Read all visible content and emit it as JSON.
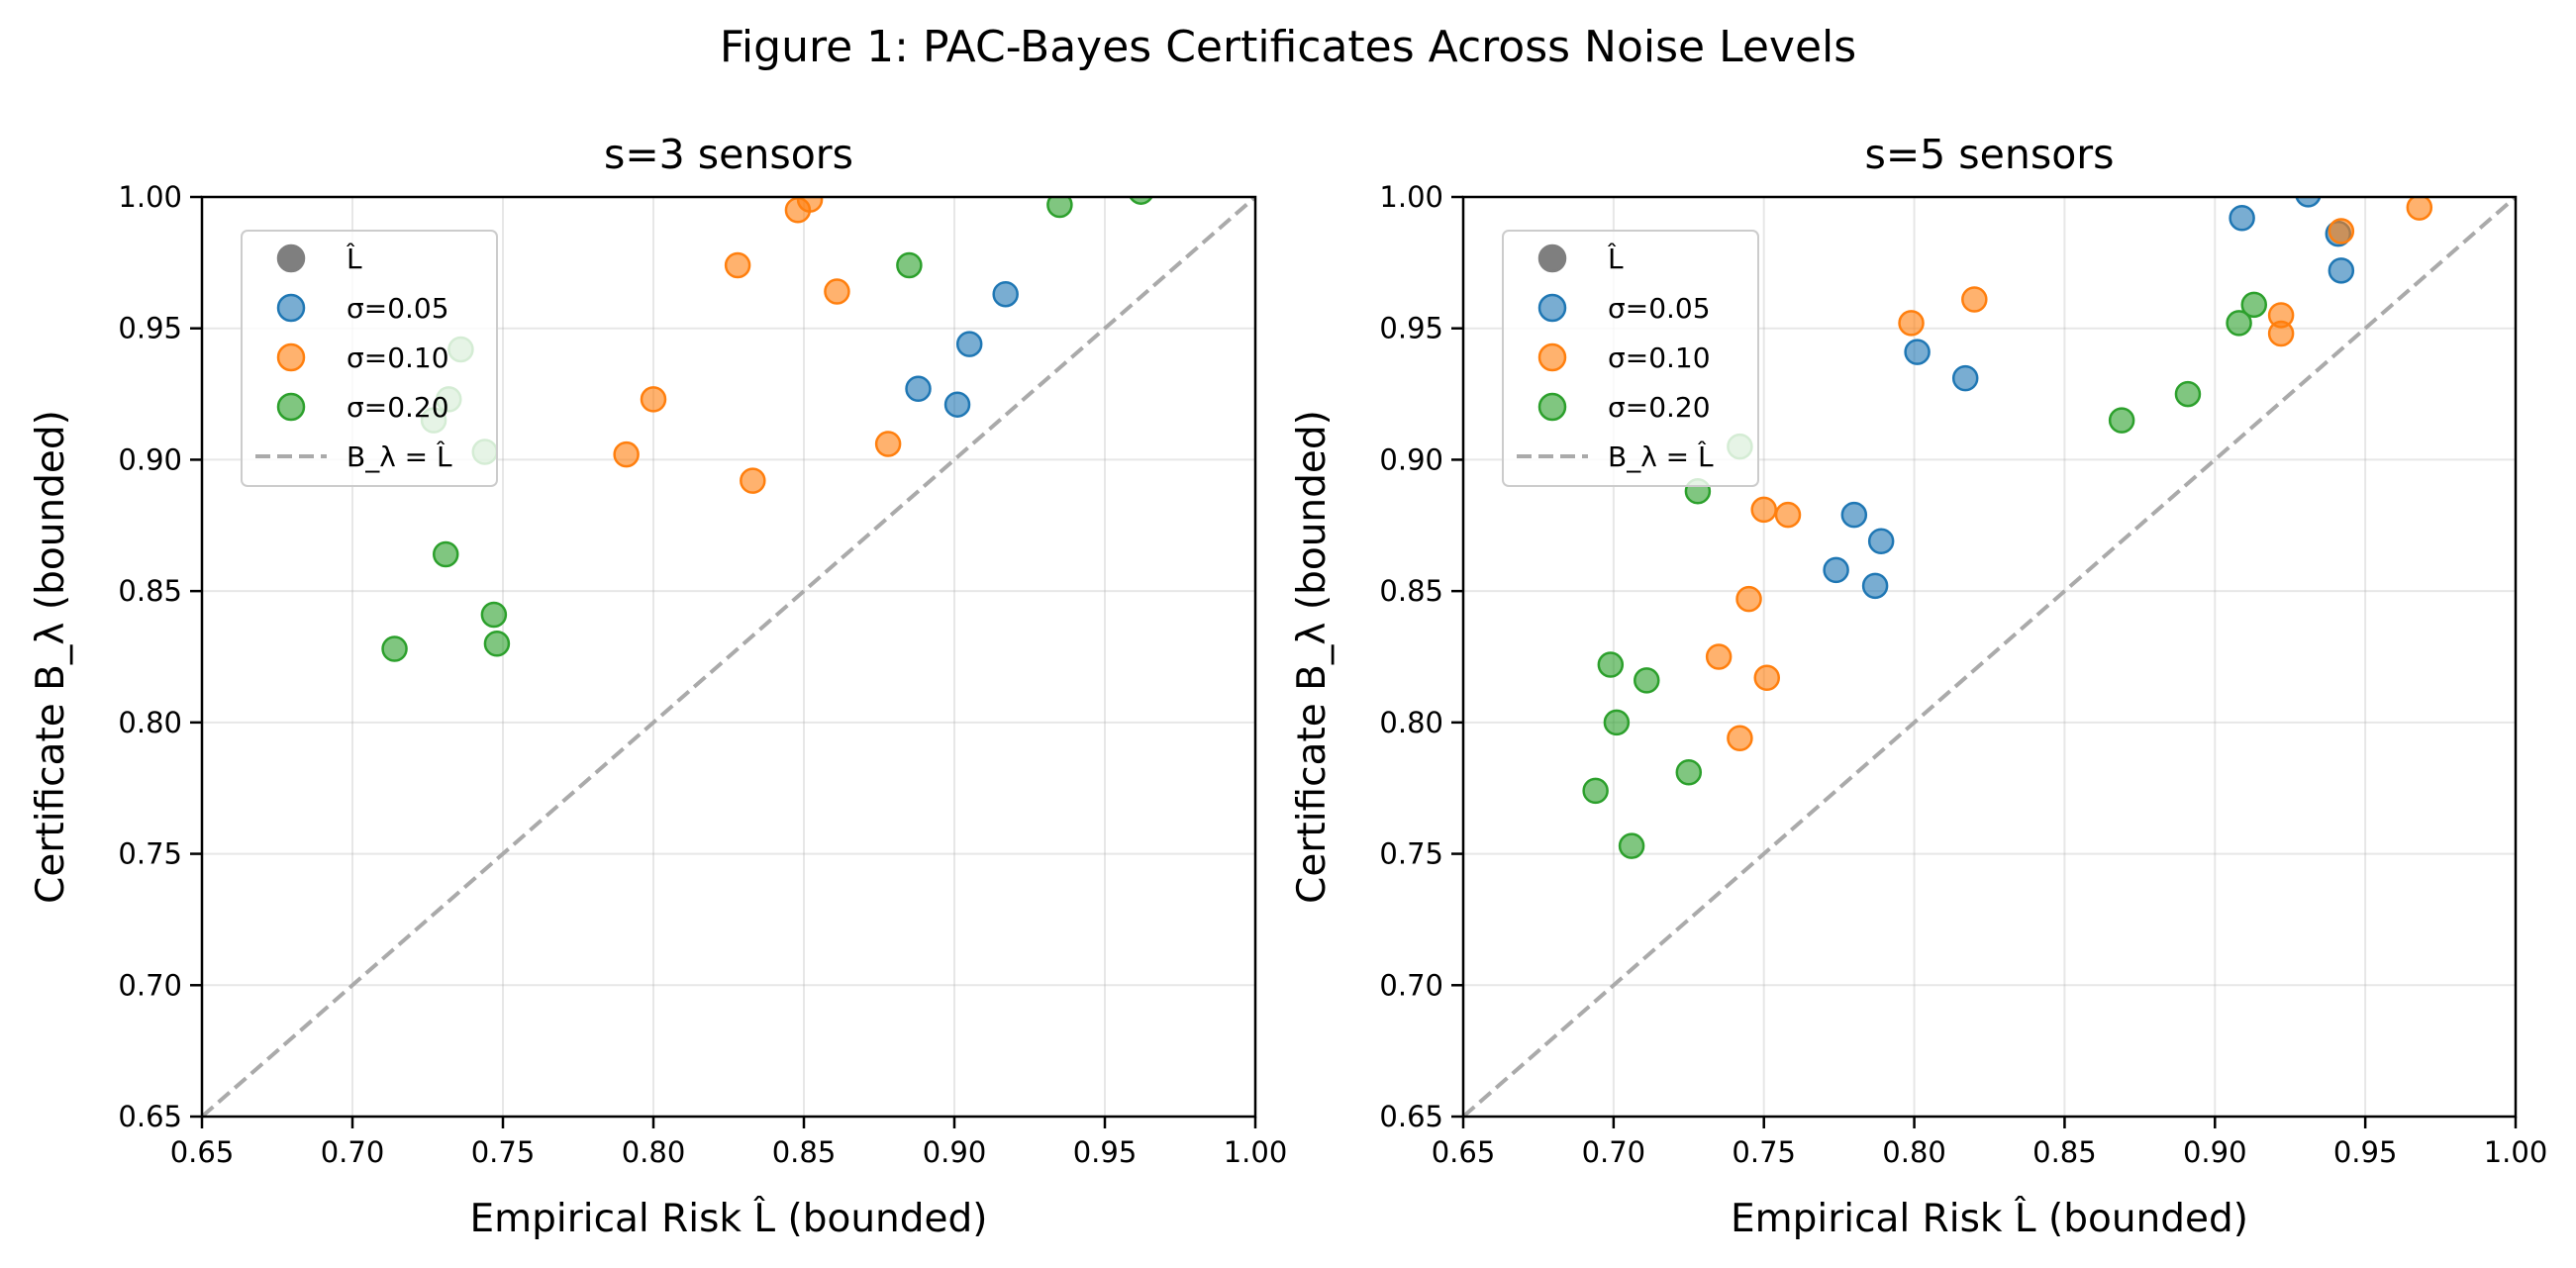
{
  "figure_title": "Figure 1: PAC-Bayes Certificates Across Noise Levels",
  "colors": {
    "sigma_0.05": "#1f77b4",
    "sigma_0.10": "#ff7f0e",
    "sigma_0.20": "#2ca02c",
    "legend_marker": "#7f7f7f",
    "diagonal": "#aaaaaa"
  },
  "chart_data": [
    {
      "type": "scatter",
      "title": "s=3 sensors",
      "xlabel": "Empirical Risk L̂ (bounded)",
      "ylabel": "Certificate B_λ (bounded)",
      "xlim": [
        0.65,
        1.0
      ],
      "ylim": [
        0.65,
        1.0
      ],
      "xticks": [
        "0.65",
        "0.70",
        "0.75",
        "0.80",
        "0.85",
        "0.90",
        "0.95",
        "1.00"
      ],
      "yticks": [
        "0.65",
        "0.70",
        "0.75",
        "0.80",
        "0.85",
        "0.90",
        "0.95",
        "1.00"
      ],
      "grid": true,
      "legend_position": "top-left",
      "legend": [
        "L̂",
        "σ=0.05",
        "σ=0.10",
        "σ=0.20",
        "B_λ = L̂"
      ],
      "series": [
        {
          "name": "σ=0.05",
          "color": "#1f77b4",
          "points": [
            [
              0.888,
              0.927
            ],
            [
              0.901,
              0.921
            ],
            [
              0.905,
              0.944
            ],
            [
              0.917,
              0.963
            ]
          ]
        },
        {
          "name": "σ=0.10",
          "color": "#ff7f0e",
          "points": [
            [
              0.791,
              0.902
            ],
            [
              0.8,
              0.923
            ],
            [
              0.828,
              0.974
            ],
            [
              0.833,
              0.892
            ],
            [
              0.848,
              0.995
            ],
            [
              0.852,
              0.999
            ],
            [
              0.861,
              0.964
            ],
            [
              0.878,
              0.906
            ]
          ]
        },
        {
          "name": "σ=0.20",
          "color": "#2ca02c",
          "points": [
            [
              0.714,
              0.828
            ],
            [
              0.727,
              0.915
            ],
            [
              0.731,
              0.864
            ],
            [
              0.732,
              0.923
            ],
            [
              0.736,
              0.942
            ],
            [
              0.744,
              0.903
            ],
            [
              0.747,
              0.841
            ],
            [
              0.748,
              0.83
            ],
            [
              0.885,
              0.974
            ],
            [
              0.935,
              0.997
            ],
            [
              0.962,
              1.002
            ]
          ]
        }
      ],
      "diagonal": {
        "name": "B_λ = L̂",
        "style": "dashed"
      }
    },
    {
      "type": "scatter",
      "title": "s=5 sensors",
      "xlabel": "Empirical Risk L̂ (bounded)",
      "ylabel": "Certificate B_λ (bounded)",
      "xlim": [
        0.65,
        1.0
      ],
      "ylim": [
        0.65,
        1.0
      ],
      "xticks": [
        "0.65",
        "0.70",
        "0.75",
        "0.80",
        "0.85",
        "0.90",
        "0.95",
        "1.00"
      ],
      "yticks": [
        "0.65",
        "0.70",
        "0.75",
        "0.80",
        "0.85",
        "0.90",
        "0.95",
        "1.00"
      ],
      "grid": true,
      "legend_position": "top-left",
      "legend": [
        "L̂",
        "σ=0.05",
        "σ=0.10",
        "σ=0.20",
        "B_λ = L̂"
      ],
      "series": [
        {
          "name": "σ=0.05",
          "color": "#1f77b4",
          "points": [
            [
              0.774,
              0.858
            ],
            [
              0.78,
              0.879
            ],
            [
              0.787,
              0.852
            ],
            [
              0.789,
              0.869
            ],
            [
              0.801,
              0.941
            ],
            [
              0.817,
              0.931
            ],
            [
              0.909,
              0.992
            ],
            [
              0.931,
              1.001
            ],
            [
              0.941,
              0.986
            ],
            [
              0.942,
              0.972
            ]
          ]
        },
        {
          "name": "σ=0.10",
          "color": "#ff7f0e",
          "points": [
            [
              0.735,
              0.825
            ],
            [
              0.742,
              0.794
            ],
            [
              0.745,
              0.847
            ],
            [
              0.75,
              0.881
            ],
            [
              0.751,
              0.817
            ],
            [
              0.758,
              0.879
            ],
            [
              0.799,
              0.952
            ],
            [
              0.82,
              0.961
            ],
            [
              0.922,
              0.955
            ],
            [
              0.922,
              0.948
            ],
            [
              0.942,
              0.987
            ],
            [
              0.968,
              0.996
            ]
          ]
        },
        {
          "name": "σ=0.20",
          "color": "#2ca02c",
          "points": [
            [
              0.694,
              0.774
            ],
            [
              0.699,
              0.822
            ],
            [
              0.701,
              0.8
            ],
            [
              0.706,
              0.753
            ],
            [
              0.711,
              0.816
            ],
            [
              0.725,
              0.781
            ],
            [
              0.728,
              0.888
            ],
            [
              0.742,
              0.905
            ],
            [
              0.869,
              0.915
            ],
            [
              0.891,
              0.925
            ],
            [
              0.908,
              0.952
            ],
            [
              0.913,
              0.959
            ]
          ]
        }
      ],
      "diagonal": {
        "name": "B_λ = L̂",
        "style": "dashed"
      }
    }
  ]
}
